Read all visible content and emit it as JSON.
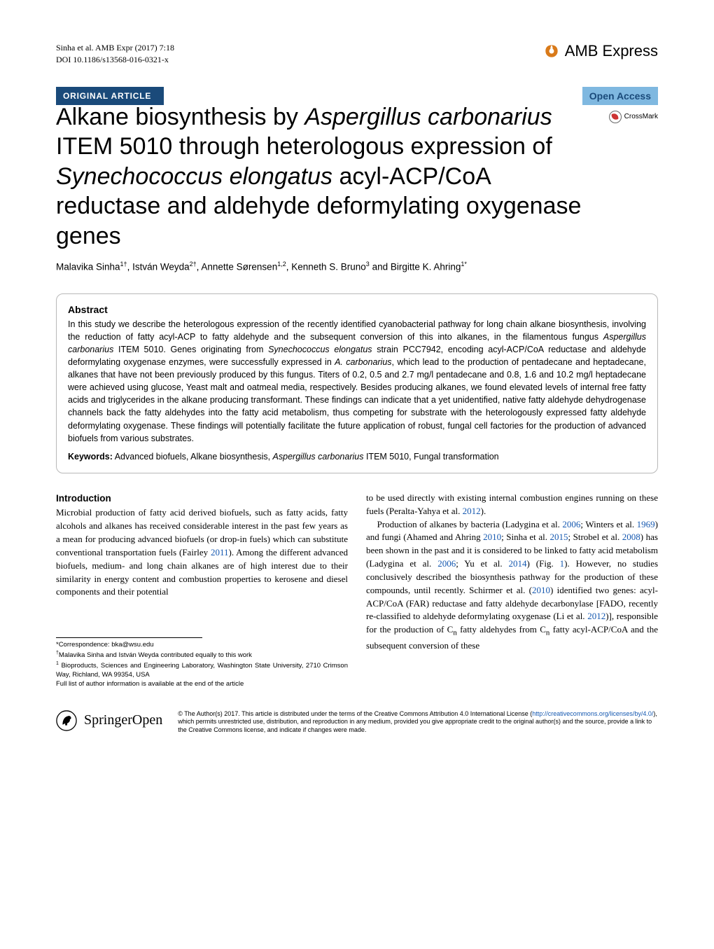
{
  "header": {
    "running_head": "Sinha et al. AMB Expr (2017) 7:18",
    "doi": "DOI 10.1186/s13568-016-0321-x",
    "journal_name": "AMB Express",
    "journal_icon_fg": "#d97a1a",
    "journal_icon_bg": "#ffffff"
  },
  "labels": {
    "article_type": "ORIGINAL ARTICLE",
    "open_access": "Open Access",
    "crossmark": "CrossMark"
  },
  "colors": {
    "type_bar_bg": "#1a4a7a",
    "open_access_bg": "#7fb8e0",
    "link": "#1558b0"
  },
  "title": {
    "p1": "Alkane biosynthesis by ",
    "it1": "Aspergillus carbonarius",
    "p2": " ITEM 5010 through heterologous expression of ",
    "it2": "Synechococcus elongatus",
    "p3": " acyl-ACP/CoA reductase and aldehyde deformylating oxygenase genes"
  },
  "authors_html": "Malavika Sinha<sup>1†</sup>, István Weyda<sup>2†</sup>, Annette Sørensen<sup>1,2</sup>, Kenneth S. Bruno<sup>3</sup> and Birgitte K. Ahring<sup>1*</sup>",
  "abstract": {
    "heading": "Abstract",
    "body_html": "In this study we describe the heterologous expression of the recently identified cyanobacterial pathway for long chain alkane biosynthesis, involving the reduction of fatty acyl-ACP to fatty aldehyde and the subsequent conversion of this into alkanes, in the filamentous fungus <span class=\"italic\">Aspergillus carbonarius</span> ITEM 5010. Genes originating from <span class=\"italic\">Synechococcus elongatus</span> strain PCC7942, encoding acyl-ACP/CoA reductase and aldehyde deformylating oxygenase enzymes, were successfully expressed in <span class=\"italic\">A. carbonarius</span>, which lead to the production of pentadecane and heptadecane, alkanes that have not been previously produced by this fungus. Titers of 0.2, 0.5 and 2.7 mg/l pentadecane and 0.8, 1.6 and 10.2 mg/l heptadecane were achieved using glucose, Yeast malt and oatmeal media, respectively. Besides producing alkanes, we found elevated levels of internal free fatty acids and triglycerides in the alkane producing transformant. These findings can indicate that a yet unidentified, native fatty aldehyde dehydrogenase channels back the fatty aldehydes into the fatty acid metabolism, thus competing for substrate with the heterologously expressed fatty aldehyde deformylating oxygenase. These findings will potentially facilitate the future application of robust, fungal cell factories for the production of advanced biofuels from various substrates.",
    "keywords_label": "Keywords:",
    "keywords_html": "Advanced biofuels, Alkane biosynthesis, <span class=\"italic\">Aspergillus carbonarius</span> ITEM 5010, Fungal transformation"
  },
  "intro": {
    "heading": "Introduction",
    "col1_html": "Microbial production of fatty acid derived biofuels, such as fatty acids, fatty alcohols and alkanes has received considerable interest in the past few years as a mean for producing advanced biofuels (or drop-in fuels) which can substitute conventional transportation fuels (Fairley <span class=\"cite-year\">2011</span>). Among the different advanced biofuels, medium- and long chain alkanes are of high interest due to their similarity in energy content and combustion properties to kerosene and diesel components and their potential",
    "col2_p1_html": "to be used directly with existing internal combustion engines running on these fuels (Peralta-Yahya et al. <span class=\"cite-year\">2012</span>).",
    "col2_p2_html": "Production of alkanes by bacteria (Ladygina et al. <span class=\"cite-year\">2006</span>; Winters et al. <span class=\"cite-year\">1969</span>) and fungi (Ahamed and Ahring <span class=\"cite-year\">2010</span>; Sinha et al. <span class=\"cite-year\">2015</span>; Strobel et al. <span class=\"cite-year\">2008</span>) has been shown in the past and it is considered to be linked to fatty acid metabolism (Ladygina et al. <span class=\"cite-year\">2006</span>; Yu et al. <span class=\"cite-year\">2014</span>) (Fig. <span class=\"cite-year\">1</span>). However, no studies conclusively described the biosynthesis pathway for the production of these compounds, until recently. Schirmer et al. (<span class=\"cite-year\">2010</span>) identified two genes: acyl-ACP/CoA (FAR) reductase and fatty aldehyde decarbonylase [FADO, recently re-classified to aldehyde deformylating oxygenase (Li et al. <span class=\"cite-year\">2012</span>)], responsible for the production of C<sub>n</sub> fatty aldehydes from C<sub>n</sub> fatty acyl-ACP/CoA and the subsequent conversion of these"
  },
  "footnotes": {
    "correspondence": "*Correspondence:  bka@wsu.edu",
    "contrib": "<sup>†</sup>Malavika Sinha and István Weyda contributed equally to this work",
    "affil": "<sup>1</sup> Bioproducts, Sciences and Engineering Laboratory, Washington State University, 2710 Crimson Way, Richland, WA 99354, USA",
    "full_list": "Full list of author information is available at the end of the article"
  },
  "footer": {
    "springer_label": "Springer",
    "springer_open": "Open",
    "license_html": "© The Author(s) 2017. This article is distributed under the terms of the Creative Commons Attribution 4.0 International License (<span class=\"license-link\">http://creativecommons.org/licenses/by/4.0/</span>), which permits unrestricted use, distribution, and reproduction in any medium, provided you give appropriate credit to the original author(s) and the source, provide a link to the Creative Commons license, and indicate if changes were made."
  }
}
